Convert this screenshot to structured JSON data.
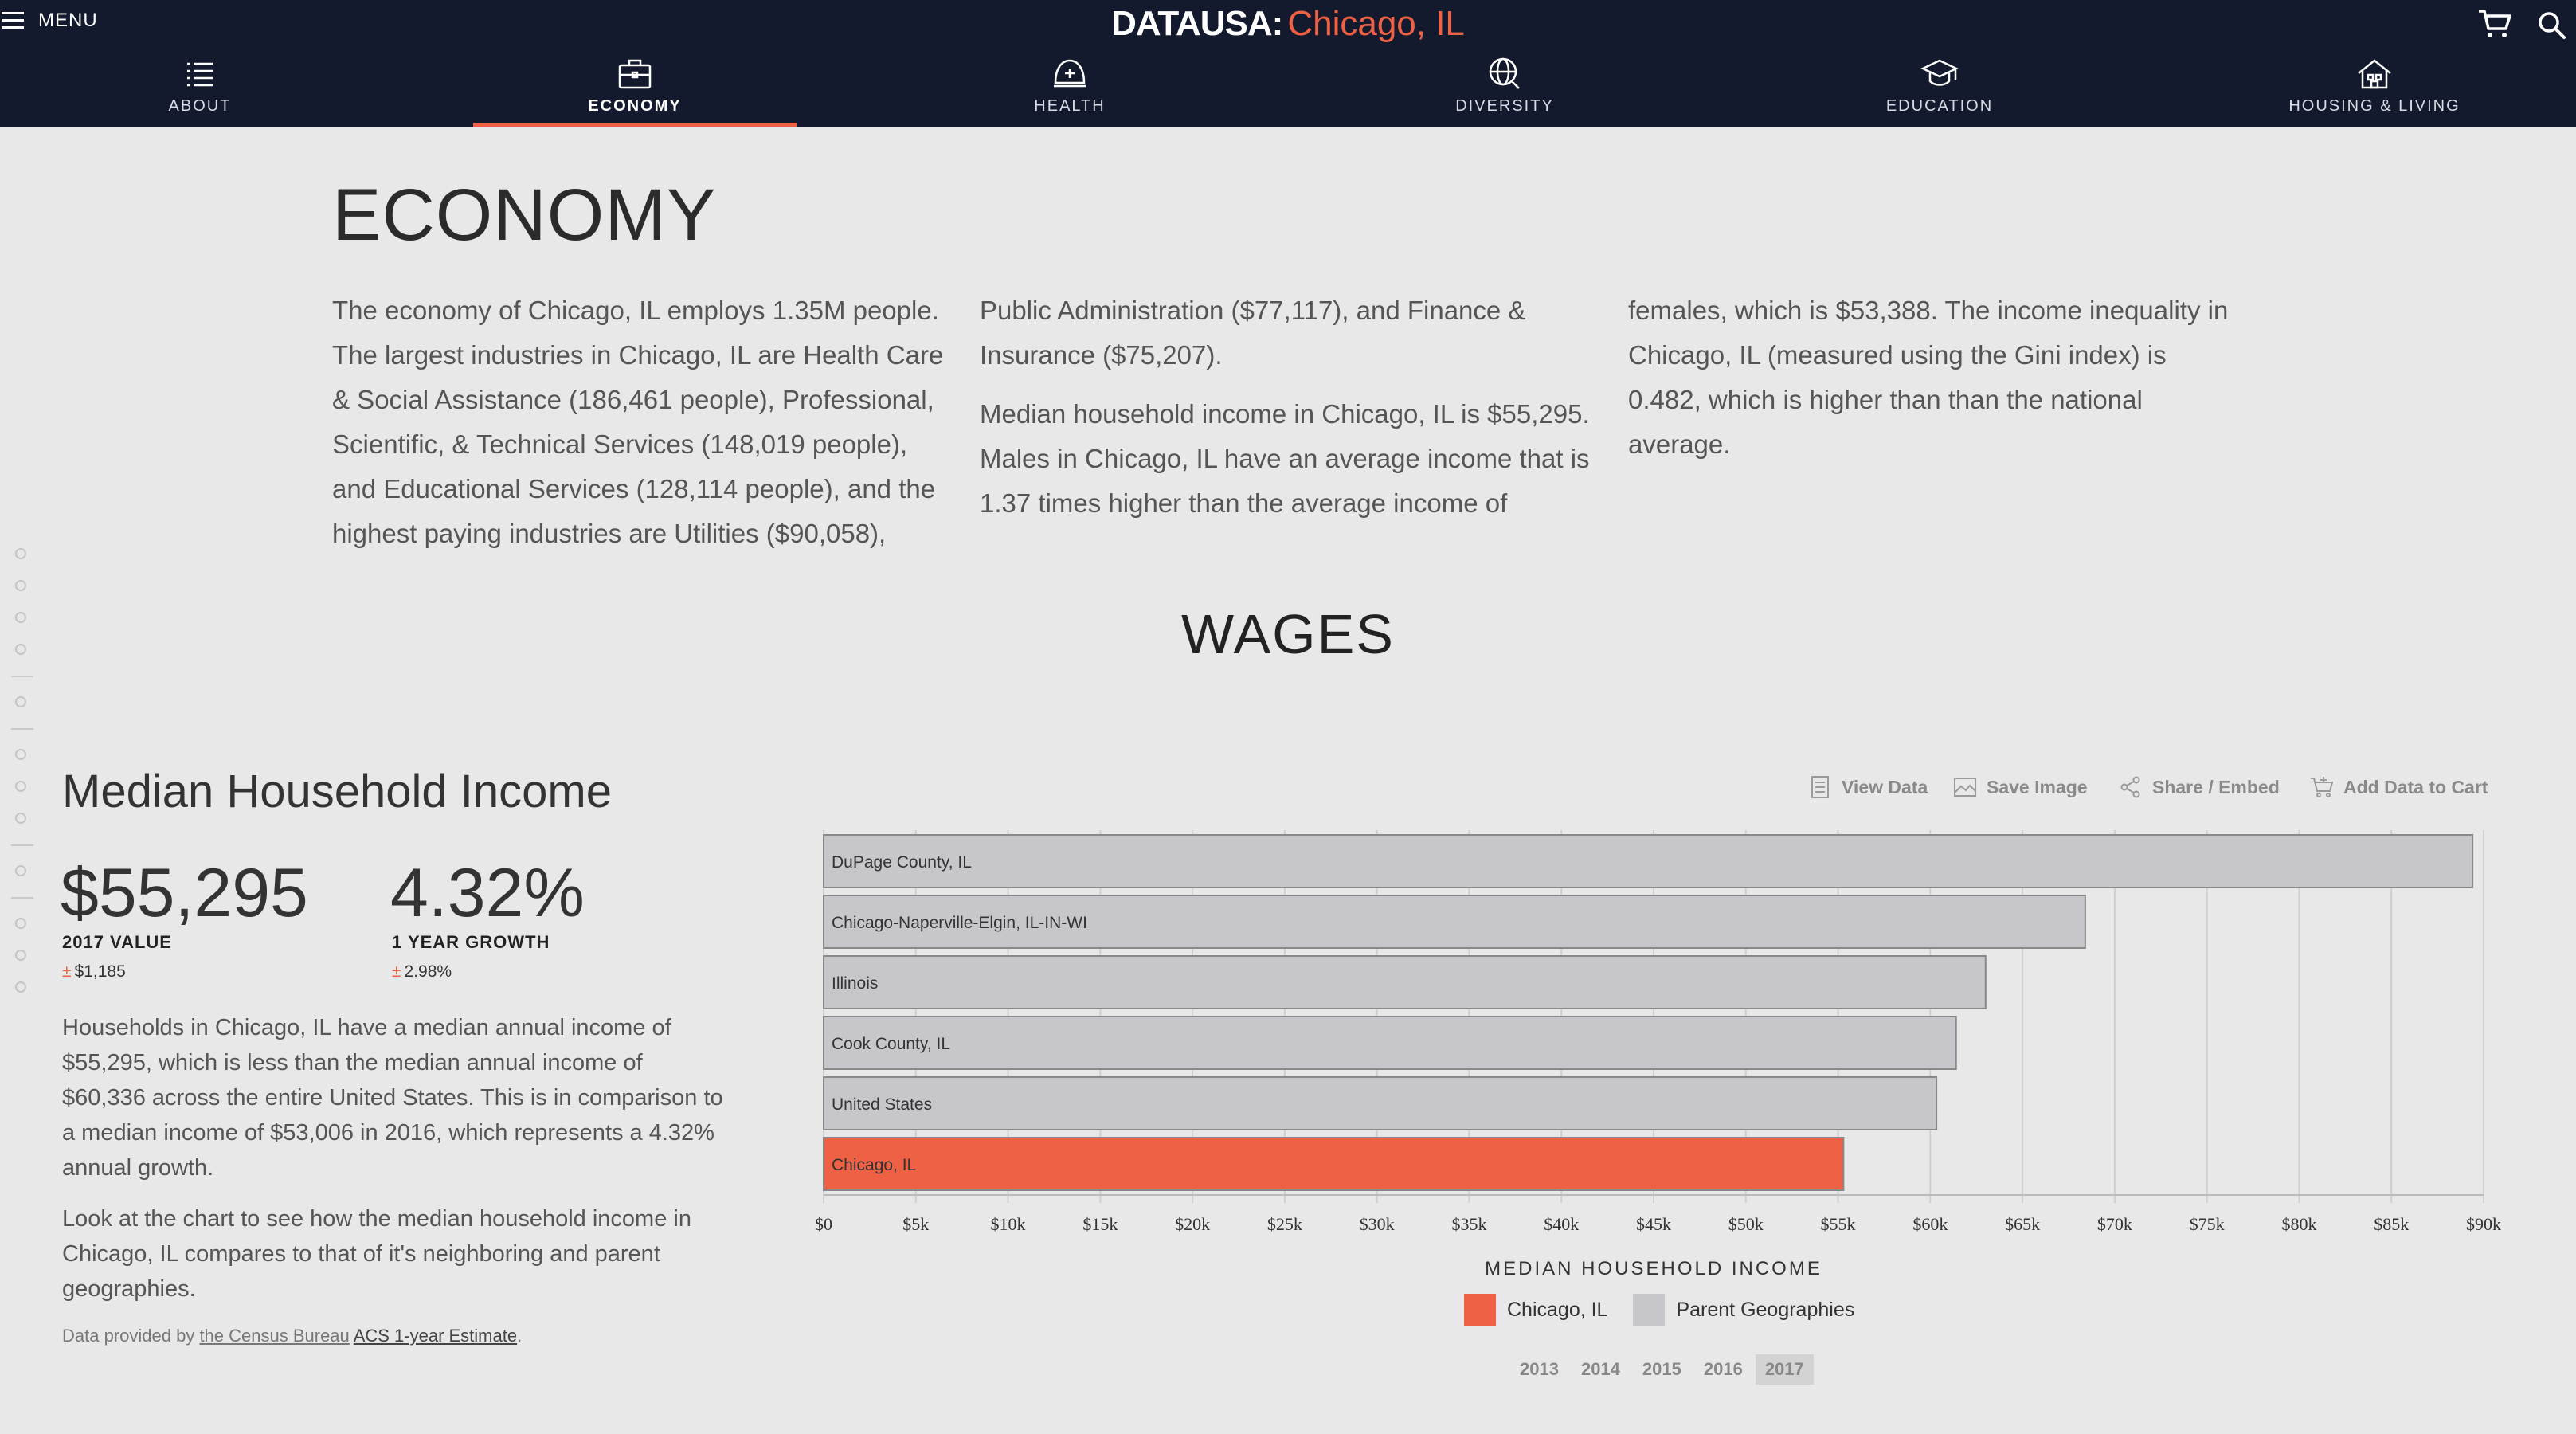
{
  "header": {
    "menu_label": "MENU",
    "brand": "DATAUSA:",
    "place": "Chicago, IL",
    "nav": [
      {
        "label": "ABOUT",
        "icon": "list-icon"
      },
      {
        "label": "ECONOMY",
        "icon": "briefcase-icon",
        "active": true
      },
      {
        "label": "HEALTH",
        "icon": "helmet-icon"
      },
      {
        "label": "DIVERSITY",
        "icon": "globe-search-icon"
      },
      {
        "label": "EDUCATION",
        "icon": "graduation-cap-icon"
      },
      {
        "label": "HOUSING & LIVING",
        "icon": "house-icon"
      }
    ],
    "accent": "#ef6145",
    "bg": "#131a2e"
  },
  "economy": {
    "title": "ECONOMY",
    "col1": "The economy of Chicago, IL employs 1.35M people. The largest industries in Chicago, IL are Health Care & Social Assistance (186,461 people), Professional, Scientific, & Technical Services (148,019 people), and Educational Services (128,114 people), and the highest paying industries are Utilities ($90,058),",
    "col2a": "Public Administration ($77,117), and Finance & Insurance ($75,207).",
    "col2b": "Median household income in Chicago, IL is $55,295. Males in Chicago, IL have an average income that is 1.37 times higher than the average income of",
    "col3": "females, which is $53,388. The income inequality in Chicago, IL (measured using the Gini index) is 0.482, which is higher than than the national average."
  },
  "wages": {
    "title": "WAGES",
    "mhi_title": "Median Household Income",
    "value": "$55,295",
    "value_label": "2017 VALUE",
    "value_moe": "$1,185",
    "growth": "4.32%",
    "growth_label": "1 YEAR GROWTH",
    "growth_moe": "2.98%",
    "pm": "±",
    "desc1": "Households in Chicago, IL have a median annual income of $55,295, which is less than the median annual income of $60,336 across the entire United States. This is in comparison to a median income of $53,006 in 2016, which represents a 4.32% annual growth.",
    "desc2": "Look at the chart to see how the median household income in Chicago, IL compares to that of it's neighboring and parent geographies.",
    "source_prefix": "Data provided by ",
    "source_link1": "the Census Bureau",
    "source_link2": "ACS 1-year Estimate",
    "source_suffix": "."
  },
  "toolbar": {
    "view_data": "View Data",
    "save_image": "Save Image",
    "share": "Share / Embed",
    "add_cart": "Add Data to Cart"
  },
  "legend": {
    "chicago": "Chicago, IL",
    "parent": "Parent Geographies"
  },
  "years": [
    "2013",
    "2014",
    "2015",
    "2016",
    "2017"
  ],
  "active_year": "2017",
  "chart_data": {
    "type": "bar",
    "orientation": "horizontal",
    "categories": [
      "DuPage County, IL",
      "Chicago-Naperville-Elgin, IL-IN-WI",
      "Illinois",
      "Cook County, IL",
      "United States",
      "Chicago, IL"
    ],
    "values": [
      89400,
      68400,
      63000,
      61400,
      60336,
      55295
    ],
    "highlight": "Chicago, IL",
    "colors": {
      "highlight": "#ef6145",
      "parent": "#c7c7cb"
    },
    "xlabel": "MEDIAN HOUSEHOLD INCOME",
    "xlim": [
      0,
      90000
    ],
    "xticks": [
      "$0",
      "$5k",
      "$10k",
      "$15k",
      "$20k",
      "$25k",
      "$30k",
      "$35k",
      "$40k",
      "$45k",
      "$50k",
      "$55k",
      "$60k",
      "$65k",
      "$70k",
      "$75k",
      "$80k",
      "$85k",
      "$90k"
    ],
    "grid": true
  }
}
